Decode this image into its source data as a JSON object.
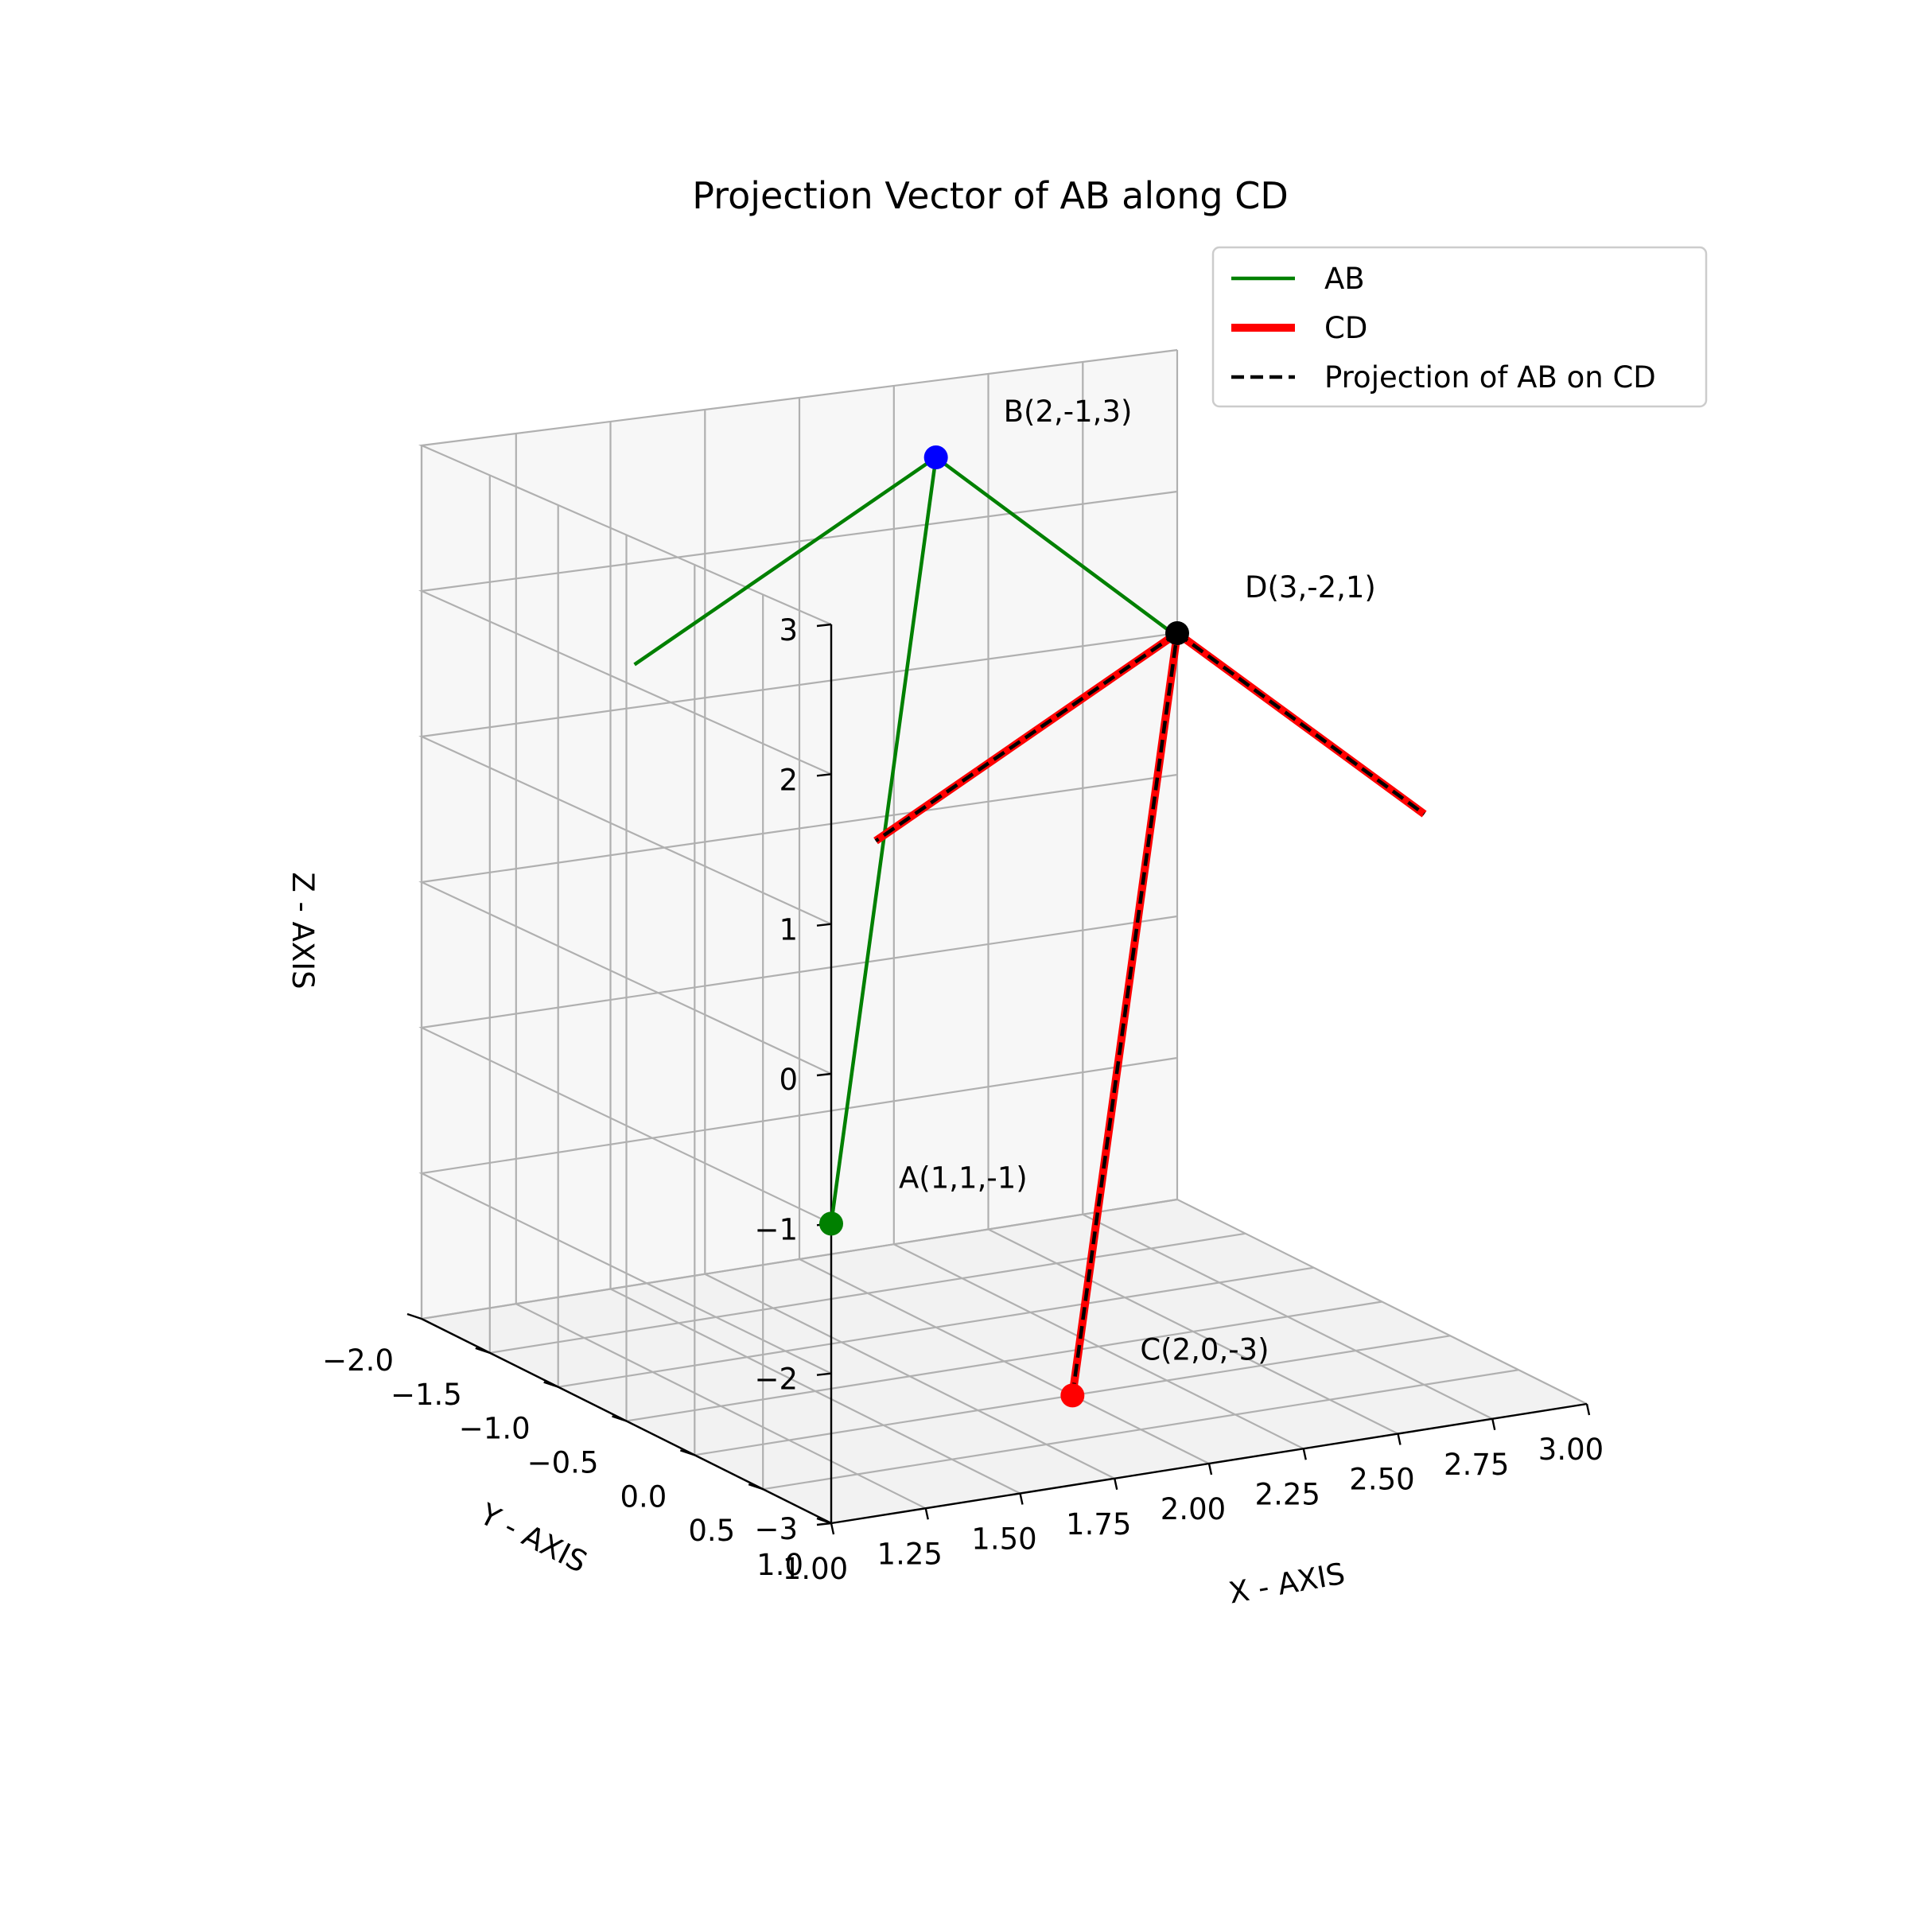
{
  "chart_data": {
    "type": "line3d",
    "title": "Projection Vector of AB along CD",
    "xlabel": "X - AXIS",
    "ylabel": "Y - AXIS",
    "zlabel": "Z - AXIS",
    "xlim": [
      1.0,
      3.0
    ],
    "ylim": [
      -2.0,
      1.0
    ],
    "zlim": [
      -3.0,
      3.0
    ],
    "x_ticks": [
      "1.00",
      "1.25",
      "1.50",
      "1.75",
      "2.00",
      "2.25",
      "2.50",
      "2.75",
      "3.00"
    ],
    "y_ticks": [
      "1.0",
      "0.5",
      "0.0",
      "−0.5",
      "−1.0",
      "−1.5",
      "−2.0"
    ],
    "z_ticks": [
      "3",
      "2",
      "1",
      "0",
      "−1",
      "−2",
      "−3"
    ],
    "grid": true,
    "legend_position": "top-right",
    "points": [
      {
        "label": "A(1,1,-1)",
        "x": 1,
        "y": 1,
        "z": -1,
        "color": "#008000"
      },
      {
        "label": "B(2,-1,3)",
        "x": 2,
        "y": -1,
        "z": 3,
        "color": "#0000ff"
      },
      {
        "label": "C(2,0,-3)",
        "x": 2,
        "y": 0,
        "z": -3,
        "color": "#ff0000"
      },
      {
        "label": "D(3,-2,1)",
        "x": 3,
        "y": -2,
        "z": 1,
        "color": "#000000"
      }
    ],
    "series": [
      {
        "name": "AB",
        "from": [
          1,
          1,
          -1
        ],
        "to": [
          2,
          -1,
          3
        ],
        "color": "#008000",
        "style": "solid",
        "width": "thin"
      },
      {
        "name": "CD",
        "from": [
          2,
          0,
          -3
        ],
        "to": [
          3,
          -2,
          1
        ],
        "color": "#ff0000",
        "style": "solid",
        "width": "thick"
      },
      {
        "name": "Projection of AB on CD",
        "from": [
          2,
          0,
          -3
        ],
        "to": [
          3,
          -2,
          1
        ],
        "color": "#000000",
        "style": "dashed",
        "width": "thin"
      }
    ]
  }
}
